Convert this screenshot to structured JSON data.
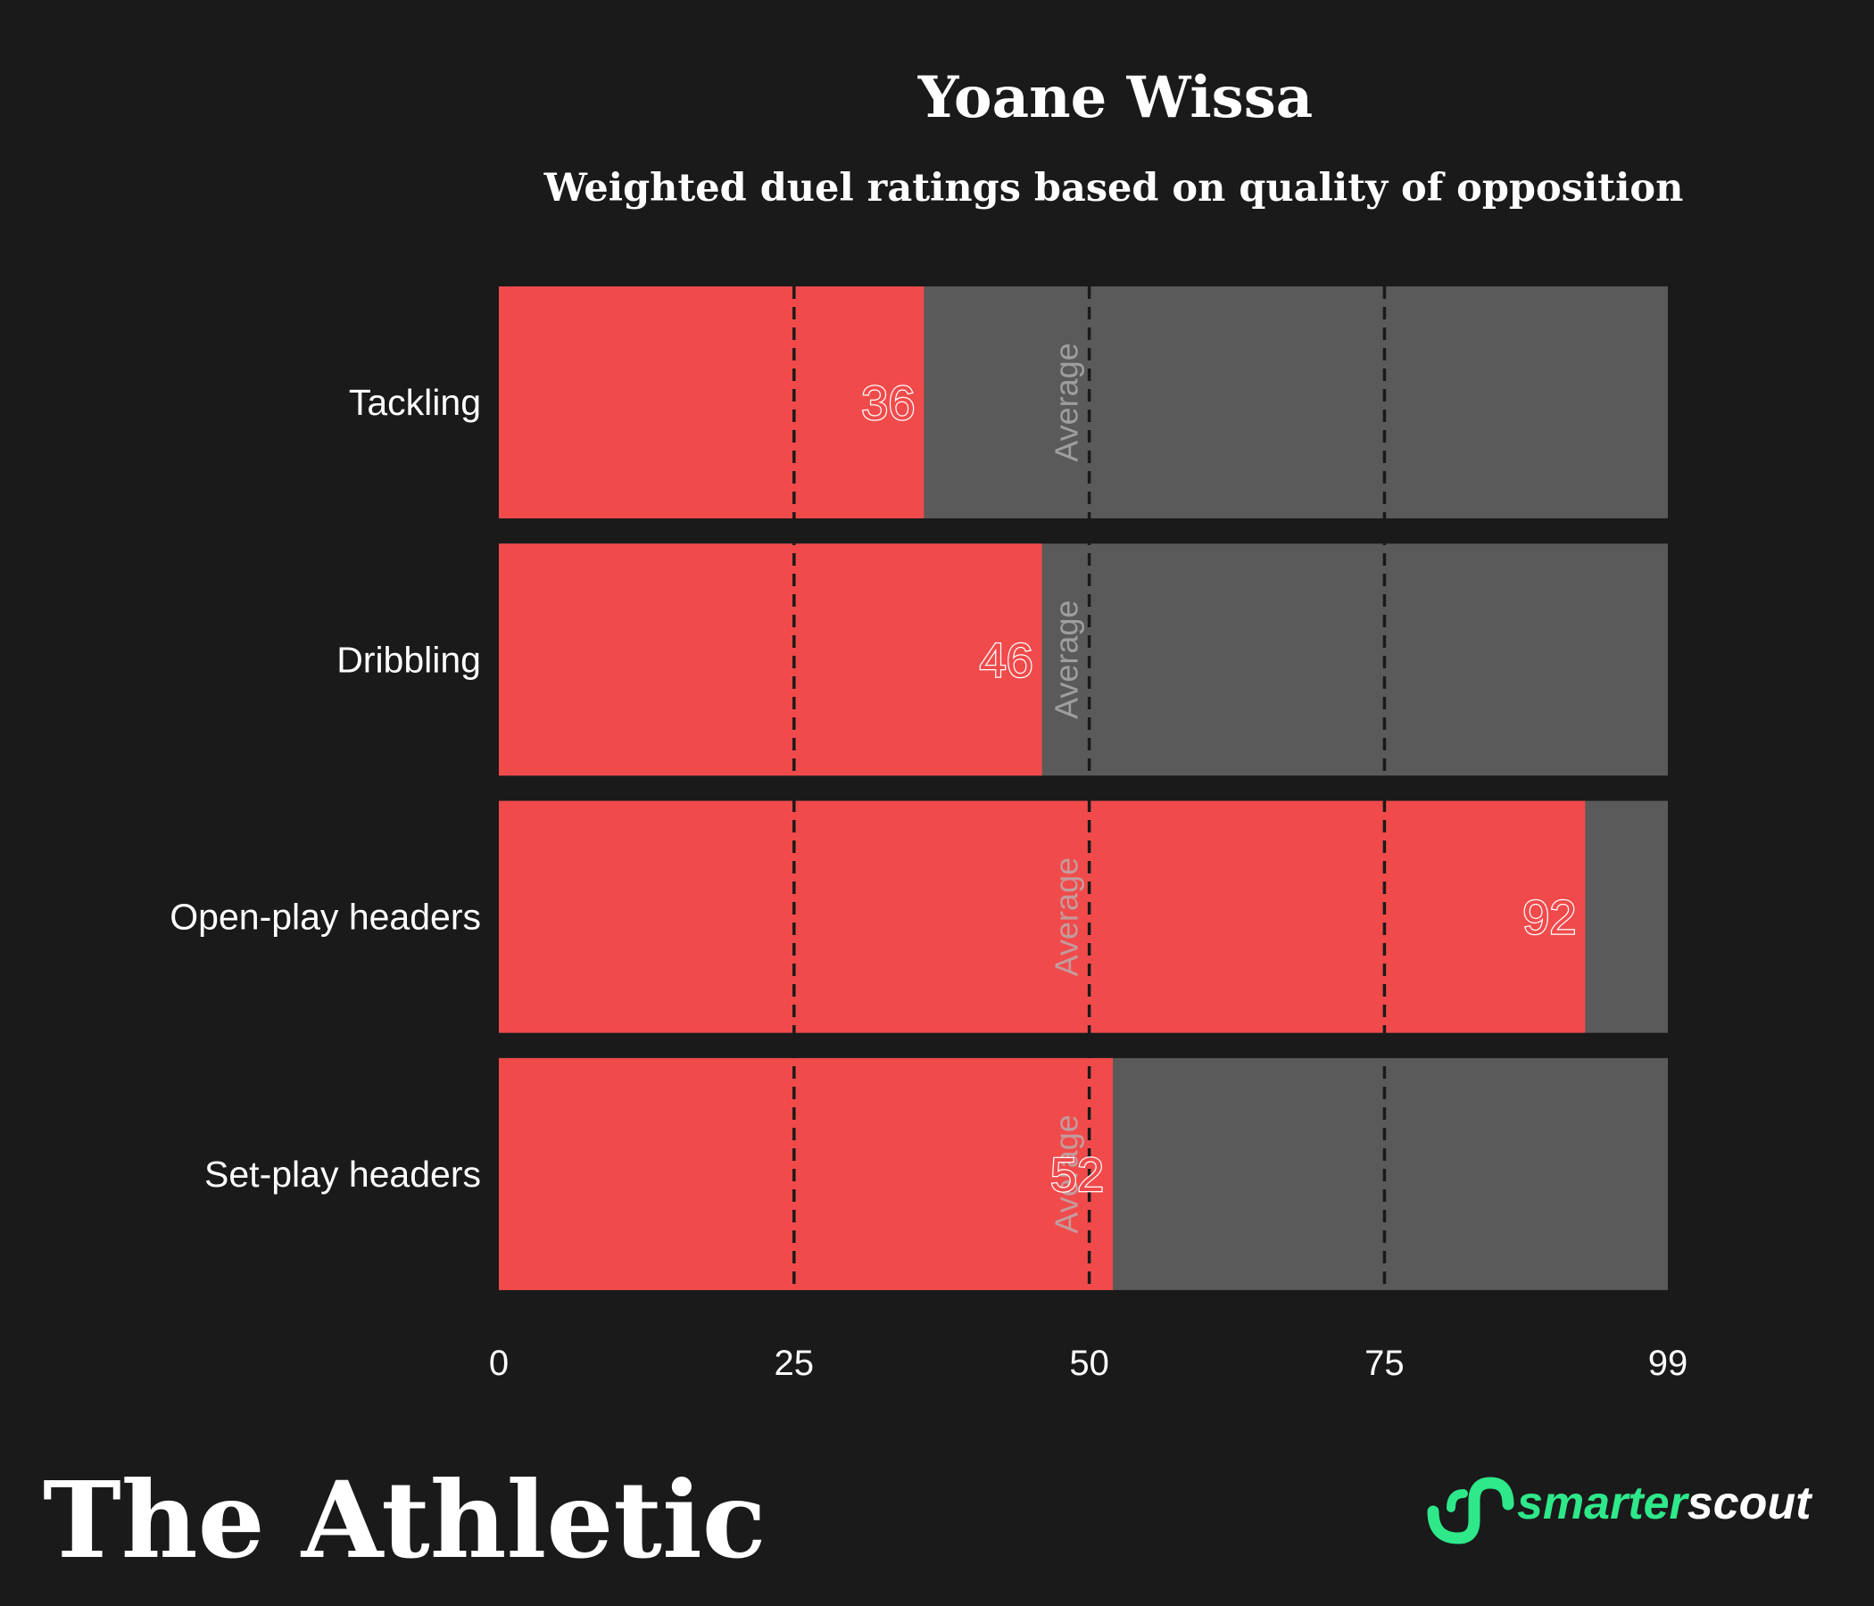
{
  "colors": {
    "background": "#1a1a1a",
    "bar_fill": "#f04a4b",
    "bar_track": "#5a5a5a",
    "text": "#ffffff",
    "average_text": "#b5b5b5",
    "scout_green": "#2ee88a"
  },
  "chart_data": {
    "type": "bar",
    "orientation": "horizontal",
    "title": "Yoane Wissa",
    "subtitle": "Weighted duel ratings based on quality of opposition",
    "categories": [
      "Tackling",
      "Dribbling",
      "Open-play headers",
      "Set-play headers"
    ],
    "values": [
      36,
      46,
      92,
      52
    ],
    "xlim": [
      0,
      99
    ],
    "xticks": [
      0,
      25,
      50,
      75,
      99
    ],
    "xtick_labels": [
      "0",
      "25",
      "50",
      "75",
      "99"
    ],
    "reference_lines": [
      25,
      50,
      75
    ],
    "average_line": 50,
    "average_label": "Average",
    "grid": false,
    "legend": "none"
  },
  "branding": {
    "publisher": "The Athletic",
    "data_partner": "smarterscout",
    "partner_icon": "smarterscout-logo-icon"
  }
}
